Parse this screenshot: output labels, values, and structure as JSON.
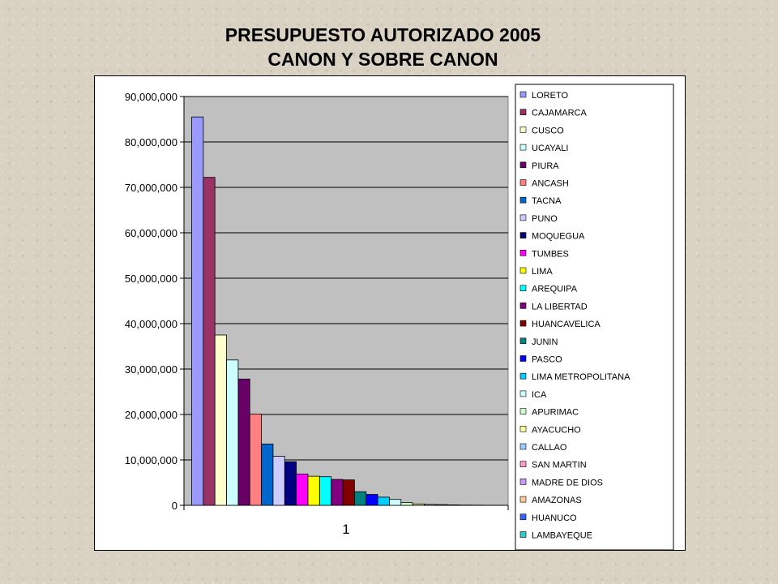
{
  "slide": {
    "title_line1": "PRESUPUESTO AUTORIZADO 2005",
    "title_line2": "CANON Y SOBRE CANON"
  },
  "chart_data": {
    "type": "bar",
    "categories": [
      "1"
    ],
    "ylim": [
      0,
      90000000
    ],
    "yticks": [
      0,
      10000000,
      20000000,
      30000000,
      40000000,
      50000000,
      60000000,
      70000000,
      80000000,
      90000000
    ],
    "ytick_labels": [
      "0",
      "10,000,000",
      "20,000,000",
      "30,000,000",
      "40,000,000",
      "50,000,000",
      "60,000,000",
      "70,000,000",
      "80,000,000",
      "90,000,000"
    ],
    "grid": true,
    "legend_position": "right",
    "plot_background": "#c0c0c0",
    "series": [
      {
        "name": "LORETO",
        "color": "#9999ff",
        "values": [
          85500000
        ]
      },
      {
        "name": "CAJAMARCA",
        "color": "#993366",
        "values": [
          72200000
        ]
      },
      {
        "name": "CUSCO",
        "color": "#ffffcc",
        "values": [
          37500000
        ]
      },
      {
        "name": "UCAYALI",
        "color": "#ccffff",
        "values": [
          32000000
        ]
      },
      {
        "name": "PIURA",
        "color": "#660066",
        "values": [
          27800000
        ]
      },
      {
        "name": "ANCASH",
        "color": "#ff8080",
        "values": [
          20100000
        ]
      },
      {
        "name": "TACNA",
        "color": "#0066cc",
        "values": [
          13500000
        ]
      },
      {
        "name": "PUNO",
        "color": "#ccccff",
        "values": [
          10800000
        ]
      },
      {
        "name": "MOQUEGUA",
        "color": "#000080",
        "values": [
          9600000
        ]
      },
      {
        "name": "TUMBES",
        "color": "#ff00ff",
        "values": [
          6900000
        ]
      },
      {
        "name": "LIMA",
        "color": "#ffff00",
        "values": [
          6400000
        ]
      },
      {
        "name": "AREQUIPA",
        "color": "#00ffff",
        "values": [
          6300000
        ]
      },
      {
        "name": "LA LIBERTAD",
        "color": "#800080",
        "values": [
          5700000
        ]
      },
      {
        "name": "HUANCAVELICA",
        "color": "#800000",
        "values": [
          5600000
        ]
      },
      {
        "name": "JUNIN",
        "color": "#008080",
        "values": [
          3000000
        ]
      },
      {
        "name": "PASCO",
        "color": "#0000ff",
        "values": [
          2400000
        ]
      },
      {
        "name": "LIMA METROPOLITANA",
        "color": "#00ccff",
        "values": [
          1800000
        ]
      },
      {
        "name": "ICA",
        "color": "#ccffff",
        "values": [
          1300000
        ]
      },
      {
        "name": "APURIMAC",
        "color": "#ccffcc",
        "values": [
          600000
        ]
      },
      {
        "name": "AYACUCHO",
        "color": "#ffff99",
        "values": [
          300000
        ]
      },
      {
        "name": "CALLAO",
        "color": "#99ccff",
        "values": [
          200000
        ]
      },
      {
        "name": "SAN MARTIN",
        "color": "#ff99cc",
        "values": [
          150000
        ]
      },
      {
        "name": "MADRE DE DIOS",
        "color": "#cc99ff",
        "values": [
          100000
        ]
      },
      {
        "name": "AMAZONAS",
        "color": "#ffcc99",
        "values": [
          60000
        ]
      },
      {
        "name": "HUANUCO",
        "color": "#3366ff",
        "values": [
          40000
        ]
      },
      {
        "name": "LAMBAYEQUE",
        "color": "#33cccc",
        "values": [
          20000
        ]
      }
    ]
  }
}
